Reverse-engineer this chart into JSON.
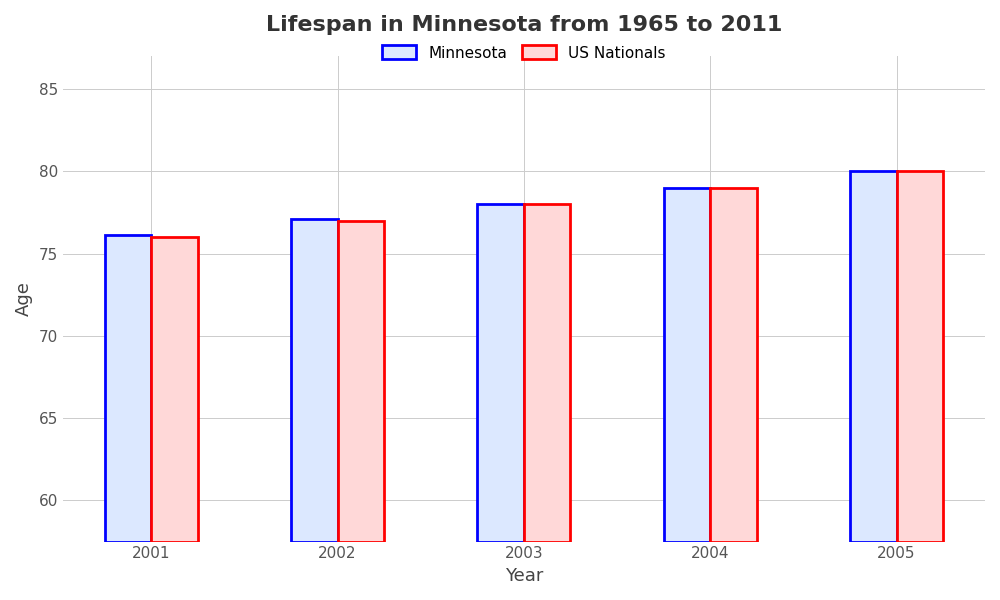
{
  "title": "Lifespan in Minnesota from 1965 to 2011",
  "xlabel": "Year",
  "ylabel": "Age",
  "years": [
    2001,
    2002,
    2003,
    2004,
    2005
  ],
  "minnesota": [
    76.1,
    77.1,
    78.0,
    79.0,
    80.0
  ],
  "us_nationals": [
    76.0,
    77.0,
    78.0,
    79.0,
    80.0
  ],
  "bar_width": 0.25,
  "ylim": [
    57.5,
    87
  ],
  "yticks": [
    60,
    65,
    70,
    75,
    80,
    85
  ],
  "mn_face_color": "#dce8ff",
  "mn_edge_color": "#0000ff",
  "us_face_color": "#ffd8d8",
  "us_edge_color": "#ff0000",
  "background_color": "#ffffff",
  "grid_color": "#cccccc",
  "title_fontsize": 16,
  "axis_label_fontsize": 13,
  "tick_fontsize": 11,
  "legend_fontsize": 11,
  "bar_linewidth": 2.0
}
